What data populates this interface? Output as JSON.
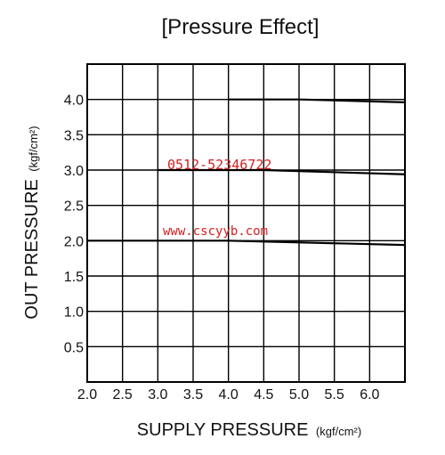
{
  "chart_data": {
    "type": "line",
    "title": "[Pressure Effect]",
    "xlabel": "SUPPLY PRESSURE",
    "xlabel_unit": "(kgf/cm²)",
    "ylabel": "OUT PRESSURE",
    "ylabel_unit": "(kgf/cm²)",
    "xlim": [
      2.0,
      6.5
    ],
    "ylim": [
      0.0,
      4.5
    ],
    "x_ticks": [
      "2.0",
      "2.5",
      "3.0",
      "3.5",
      "4.0",
      "4.5",
      "5.0",
      "5.5",
      "6.0"
    ],
    "y_ticks": [
      "0.5",
      "1.0",
      "1.5",
      "2.0",
      "2.5",
      "3.0",
      "3.5",
      "4.0"
    ],
    "grid": true,
    "series": [
      {
        "x": [
          2.0,
          4.0,
          6.5
        ],
        "y": [
          2.0,
          2.0,
          1.94
        ]
      },
      {
        "x": [
          3.0,
          4.5,
          6.5
        ],
        "y": [
          3.0,
          3.0,
          2.94
        ]
      },
      {
        "x": [
          4.0,
          5.0,
          6.5
        ],
        "y": [
          4.0,
          4.0,
          3.96
        ]
      }
    ],
    "annotations": [
      {
        "text": "0512-52346722",
        "color": "#d32020"
      },
      {
        "text": "www.cscyyb.com",
        "color": "#d32020"
      }
    ]
  }
}
